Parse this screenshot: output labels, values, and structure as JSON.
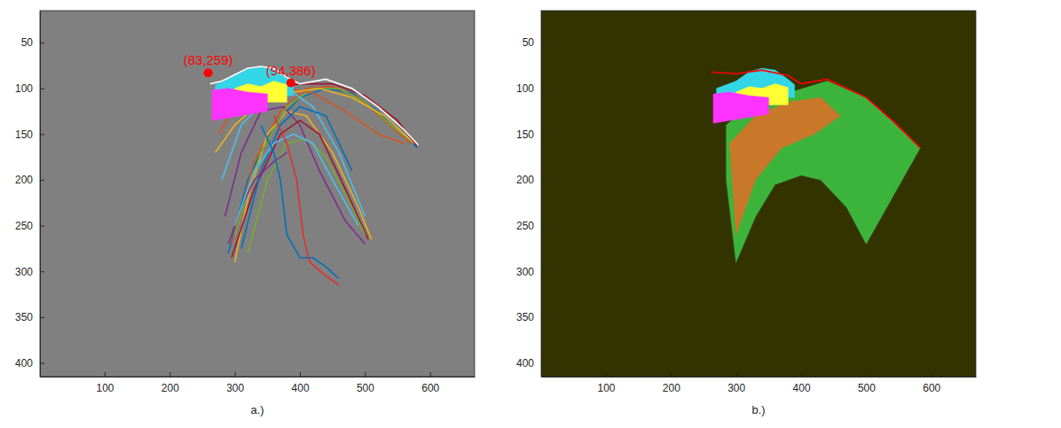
{
  "chart_data": [
    {
      "type": "line",
      "xlabel": "a.)",
      "xlim": [
        0.5,
        668.5
      ],
      "ylim": [
        15,
        415
      ],
      "xticks": [
        100,
        200,
        300,
        400,
        500,
        600
      ],
      "yticks": [
        50,
        100,
        150,
        200,
        250,
        300,
        350,
        400
      ],
      "series": [
        {
          "type": "line",
          "color": "#0072BD",
          "x": [
            290,
            320,
            360,
            400,
            440,
            480,
            520,
            560,
            580
          ],
          "y": [
            280,
            200,
            140,
            110,
            100,
            105,
            125,
            150,
            165
          ]
        },
        {
          "type": "line",
          "color": "#D95319",
          "x": [
            295,
            330,
            370,
            410,
            450,
            490,
            530,
            570
          ],
          "y": [
            270,
            180,
            125,
            100,
            98,
            110,
            135,
            160
          ]
        },
        {
          "type": "line",
          "color": "#EDB120",
          "x": [
            300,
            320,
            350,
            380,
            410,
            450,
            490,
            510
          ],
          "y": [
            290,
            220,
            150,
            125,
            130,
            170,
            230,
            265
          ]
        },
        {
          "type": "line",
          "color": "#7E2F8E",
          "x": [
            285,
            310,
            340,
            375,
            400,
            430,
            470,
            500
          ],
          "y": [
            240,
            170,
            125,
            120,
            140,
            190,
            245,
            270
          ]
        },
        {
          "type": "line",
          "color": "#77AC30",
          "x": [
            300,
            340,
            380,
            420,
            460,
            500,
            540,
            580
          ],
          "y": [
            260,
            170,
            120,
            100,
            100,
            115,
            140,
            162
          ]
        },
        {
          "type": "line",
          "color": "#4DBEEE",
          "x": [
            280,
            310,
            350,
            390,
            420,
            460,
            500
          ],
          "y": [
            200,
            140,
            110,
            105,
            120,
            170,
            240
          ]
        },
        {
          "type": "line",
          "color": "#A2142F",
          "x": [
            295,
            330,
            370,
            400,
            430,
            470,
            505
          ],
          "y": [
            285,
            210,
            150,
            135,
            150,
            210,
            265
          ]
        },
        {
          "type": "line",
          "color": "#0072BD",
          "x": [
            310,
            340,
            370,
            400,
            440,
            480
          ],
          "y": [
            275,
            190,
            140,
            120,
            130,
            190
          ]
        },
        {
          "type": "line",
          "color": "#D95319",
          "x": [
            275,
            300,
            340,
            380,
            420,
            470,
            520,
            560
          ],
          "y": [
            150,
            120,
            105,
            100,
            105,
            125,
            150,
            160
          ]
        },
        {
          "type": "line",
          "color": "#77AC30",
          "x": [
            320,
            350,
            380,
            410,
            440,
            480,
            500
          ],
          "y": [
            280,
            200,
            160,
            155,
            175,
            230,
            260
          ]
        },
        {
          "type": "line",
          "color": "#7E2F8E",
          "x": [
            290,
            310,
            330,
            360,
            380
          ],
          "y": [
            270,
            230,
            200,
            180,
            170
          ]
        },
        {
          "type": "line",
          "color": "#EDB120",
          "x": [
            270,
            300,
            340,
            380,
            430,
            480,
            530,
            575
          ],
          "y": [
            170,
            140,
            115,
            105,
            100,
            110,
            130,
            160
          ]
        },
        {
          "type": "line",
          "color": "#4DBEEE",
          "x": [
            300,
            330,
            360,
            390,
            420,
            450,
            490
          ],
          "y": [
            250,
            190,
            160,
            150,
            160,
            200,
            250
          ]
        },
        {
          "type": "line",
          "color": "#A2142F",
          "x": [
            280,
            320,
            360,
            400,
            450,
            500,
            550,
            580
          ],
          "y": [
            130,
            110,
            100,
            95,
            95,
            108,
            135,
            163
          ]
        },
        {
          "type": "line",
          "color": "#0072BD",
          "x": [
            340,
            360,
            370,
            380,
            400,
            420,
            440,
            460
          ],
          "y": [
            140,
            170,
            200,
            260,
            285,
            285,
            295,
            308
          ]
        },
        {
          "type": "line",
          "color": "#E03030",
          "x": [
            360,
            380,
            395,
            405,
            415,
            440,
            460
          ],
          "y": [
            130,
            160,
            200,
            260,
            290,
            305,
            315
          ]
        },
        {
          "type": "area",
          "color": "#33D6E6",
          "x": [
            270,
            300,
            320,
            340,
            360,
            380,
            390,
            390,
            270
          ],
          "y": [
            96,
            86,
            79,
            77,
            79,
            89,
            95,
            108,
            108
          ]
        },
        {
          "type": "area",
          "color": "#FFFF33",
          "x": [
            300,
            320,
            340,
            360,
            380,
            380,
            300
          ],
          "y": [
            100,
            95,
            98,
            92,
            96,
            115,
            115
          ]
        },
        {
          "type": "area",
          "color": "#FF33FF",
          "x": [
            265,
            290,
            320,
            350,
            350,
            265
          ],
          "y": [
            102,
            100,
            104,
            106,
            125,
            135
          ]
        },
        {
          "type": "line",
          "color": "#FFFFFF",
          "x": [
            262,
            280,
            300,
            320,
            340,
            360,
            380,
            400,
            440,
            480,
            520,
            560,
            582
          ],
          "y": [
            95,
            92,
            85,
            78,
            76,
            78,
            88,
            95,
            90,
            100,
            120,
            145,
            162
          ]
        },
        {
          "type": "scatter",
          "color": "#FF0000",
          "x": [
            259,
            386
          ],
          "y": [
            83,
            94
          ]
        }
      ],
      "annotations": [
        {
          "text": "(83,259)",
          "x": 259,
          "y": 83
        },
        {
          "text": "(94,386)",
          "x": 386,
          "y": 94
        }
      ]
    },
    {
      "type": "line",
      "xlabel": "b.)",
      "xlim": [
        0.5,
        668.5
      ],
      "ylim": [
        15,
        415
      ],
      "xticks": [
        100,
        200,
        300,
        400,
        500,
        600
      ],
      "yticks": [
        50,
        100,
        150,
        200,
        250,
        300,
        350,
        400
      ],
      "series": [
        {
          "type": "area",
          "color": "#3CB43C",
          "x": [
            285,
            320,
            380,
            440,
            500,
            540,
            583,
            500,
            470,
            430,
            400,
            360,
            330,
            300,
            285
          ],
          "y": [
            140,
            120,
            105,
            92,
            110,
            135,
            165,
            270,
            230,
            200,
            195,
            205,
            240,
            290,
            200
          ]
        },
        {
          "type": "area",
          "color": "#C87828",
          "x": [
            290,
            330,
            380,
            430,
            460,
            420,
            370,
            330,
            300
          ],
          "y": [
            160,
            130,
            115,
            110,
            130,
            150,
            165,
            200,
            260
          ]
        },
        {
          "type": "area",
          "color": "#33D6E6",
          "x": [
            270,
            300,
            320,
            340,
            360,
            380,
            390,
            390,
            270
          ],
          "y": [
            100,
            92,
            82,
            78,
            80,
            90,
            96,
            110,
            110
          ]
        },
        {
          "type": "area",
          "color": "#FFFF33",
          "x": [
            300,
            320,
            340,
            360,
            380,
            380,
            300
          ],
          "y": [
            104,
            98,
            100,
            95,
            99,
            118,
            118
          ]
        },
        {
          "type": "area",
          "color": "#FF33FF",
          "x": [
            265,
            290,
            320,
            350,
            350,
            265
          ],
          "y": [
            106,
            104,
            108,
            110,
            128,
            138
          ]
        },
        {
          "type": "line",
          "color": "#FF0000",
          "x": [
            262,
            300,
            340,
            380,
            400,
            440,
            500,
            540,
            583
          ],
          "y": [
            82,
            84,
            80,
            86,
            95,
            90,
            110,
            135,
            165
          ]
        }
      ]
    }
  ]
}
